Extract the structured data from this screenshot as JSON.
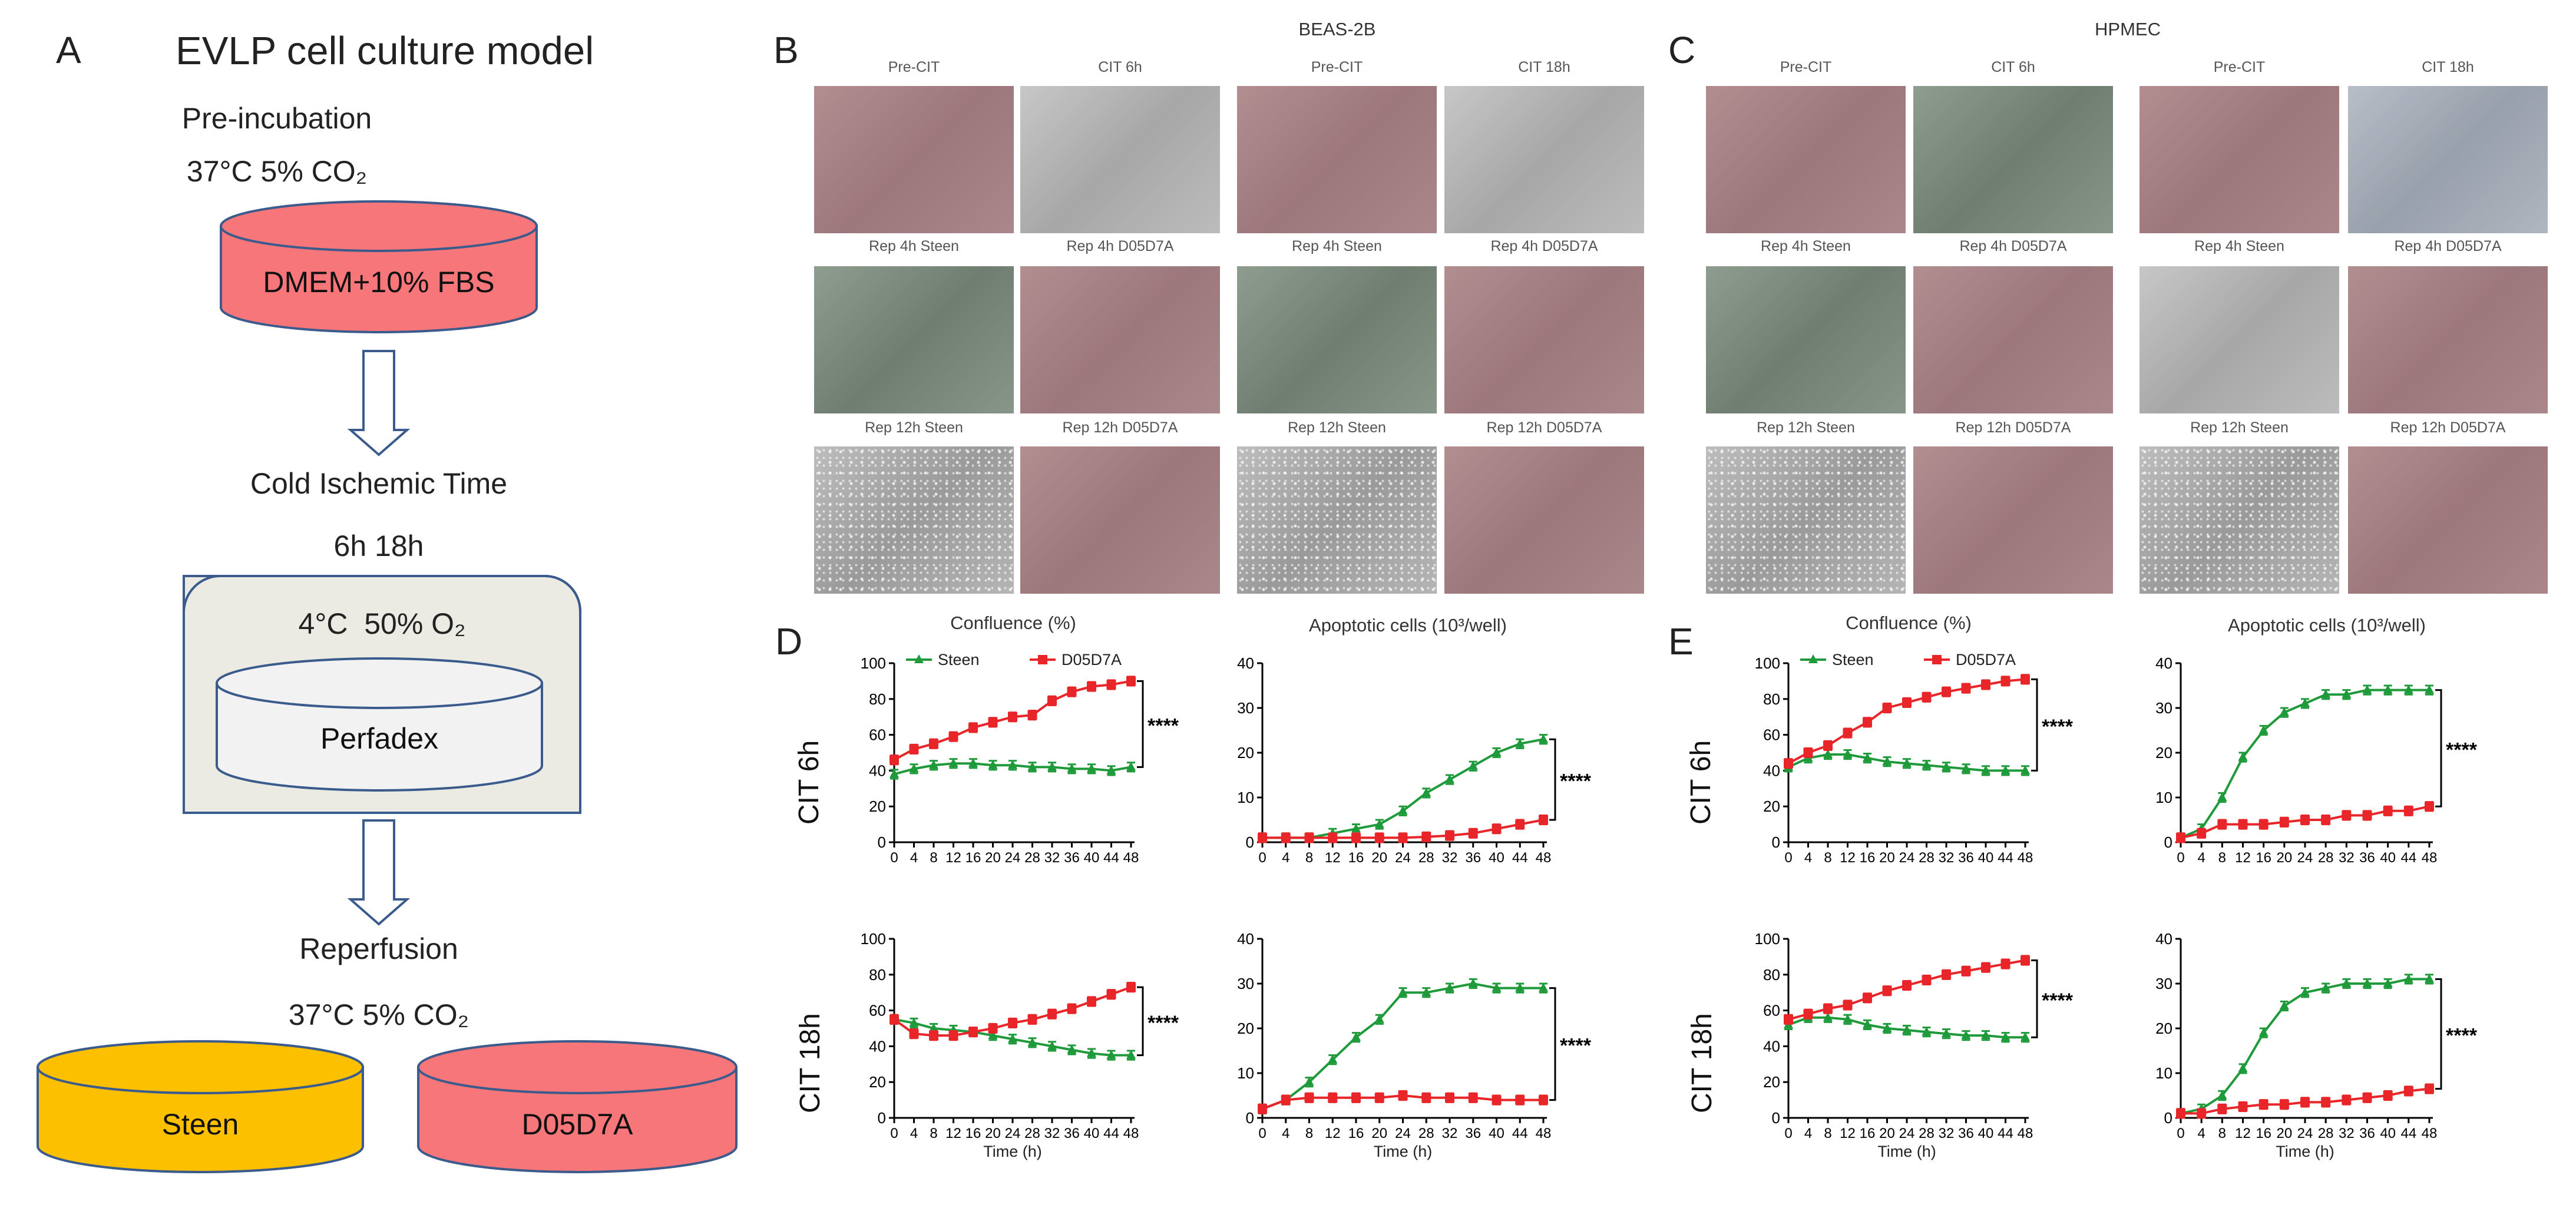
{
  "panel_labels": {
    "a": "A",
    "b": "B",
    "c": "C",
    "d": "D",
    "e": "E"
  },
  "panel_a": {
    "title": "EVLP cell culture model",
    "pre_incubation": "Pre-incubation",
    "pre_condition": "37°C 5% CO₂",
    "dish_1": "DMEM+10% FBS",
    "cold_ischemic": "Cold Ischemic Time",
    "cit_times": "6h 18h",
    "cold_condition": "4°C  50% O₂",
    "cold_dish": "Perfadex",
    "reperfusion": "Reperfusion",
    "rep_condition": "37°C 5% CO₂",
    "dish_steen": "Steen",
    "dish_d05": "D05D7A",
    "colors": {
      "pink": "#f7767a",
      "yellow": "#fdc000",
      "gray_box": "#ebebe3",
      "light_dish": "#f2f2f2",
      "outline": "#3a5b8c"
    }
  },
  "panel_b": {
    "title": "BEAS-2B",
    "rows": [
      [
        "Pre-CIT",
        "CIT 6h",
        "Pre-CIT",
        "CIT 18h"
      ],
      [
        "Rep 4h Steen",
        "Rep 4h D05D7A",
        "Rep 4h Steen",
        "Rep 4h D05D7A"
      ],
      [
        "Rep 12h Steen",
        "Rep 12h D05D7A",
        "Rep 12h Steen",
        "Rep 12h D05D7A"
      ]
    ]
  },
  "panel_c": {
    "title": "HPMEC",
    "rows": [
      [
        "Pre-CIT",
        "CIT 6h",
        "Pre-CIT",
        "CIT 18h"
      ],
      [
        "Rep 4h Steen",
        "Rep 4h D05D7A",
        "Rep 4h Steen",
        "Rep 4h D05D7A"
      ],
      [
        "Rep 12h Steen",
        "Rep 12h D05D7A",
        "Rep 12h Steen",
        "Rep 12h D05D7A"
      ]
    ]
  },
  "col_titles": {
    "confluence": "Confluence (%)",
    "apoptotic": "Apoptotic cells (10³/well)"
  },
  "row_labels": {
    "cit6": "CIT 6h",
    "cit18": "CIT 18h"
  },
  "sig": "****",
  "chart_data": [
    {
      "id": "d_conf_6h",
      "panel": "D",
      "type": "line",
      "title": "Confluence (%)",
      "ylabel": "CIT 6h",
      "xlabel": "",
      "ylim": [
        0,
        100
      ],
      "yticks": [
        0,
        20,
        40,
        60,
        80,
        100
      ],
      "x": [
        0,
        4,
        8,
        12,
        16,
        20,
        24,
        28,
        32,
        36,
        40,
        44,
        48
      ],
      "xticks": [
        0,
        4,
        8,
        12,
        16,
        20,
        24,
        28,
        32,
        36,
        40,
        44,
        48
      ],
      "legend": [
        "Steen",
        "D05D7A"
      ],
      "sig": "****",
      "series": [
        {
          "name": "Steen",
          "color": "#1f9a3a",
          "values": [
            38,
            41,
            43,
            44,
            44,
            43,
            43,
            42,
            42,
            41,
            41,
            40,
            42
          ]
        },
        {
          "name": "D05D7A",
          "color": "#e8262a",
          "values": [
            46,
            52,
            55,
            59,
            64,
            67,
            70,
            71,
            79,
            84,
            87,
            88,
            90
          ]
        }
      ]
    },
    {
      "id": "d_apop_6h",
      "panel": "D",
      "type": "line",
      "title": "Apoptotic cells (10³/well)",
      "ylim": [
        0,
        40
      ],
      "yticks": [
        0,
        10,
        20,
        30,
        40
      ],
      "x": [
        0,
        4,
        8,
        12,
        16,
        20,
        24,
        28,
        32,
        36,
        40,
        44,
        48
      ],
      "xticks": [
        0,
        4,
        8,
        12,
        16,
        20,
        24,
        28,
        32,
        36,
        40,
        44,
        48
      ],
      "sig": "****",
      "series": [
        {
          "name": "Steen",
          "color": "#1f9a3a",
          "values": [
            1,
            1,
            1,
            2,
            3,
            4,
            7,
            11,
            14,
            17,
            20,
            22,
            23
          ]
        },
        {
          "name": "D05D7A",
          "color": "#e8262a",
          "values": [
            1,
            1,
            1,
            1,
            1,
            1,
            1,
            1.2,
            1.5,
            2,
            3,
            4,
            5
          ]
        }
      ]
    },
    {
      "id": "d_conf_18h",
      "panel": "D",
      "type": "line",
      "title": "",
      "ylabel": "CIT 18h",
      "xlabel": "Time (h)",
      "ylim": [
        0,
        100
      ],
      "yticks": [
        0,
        20,
        40,
        60,
        80,
        100
      ],
      "x": [
        0,
        4,
        8,
        12,
        16,
        20,
        24,
        28,
        32,
        36,
        40,
        44,
        48
      ],
      "xticks": [
        0,
        4,
        8,
        12,
        16,
        20,
        24,
        28,
        32,
        36,
        40,
        44,
        48
      ],
      "sig": "****",
      "series": [
        {
          "name": "Steen",
          "color": "#1f9a3a",
          "values": [
            55,
            53,
            50,
            49,
            48,
            46,
            44,
            42,
            40,
            38,
            36,
            35,
            35
          ]
        },
        {
          "name": "D05D7A",
          "color": "#e8262a",
          "values": [
            55,
            47,
            46,
            46,
            48,
            50,
            53,
            55,
            58,
            61,
            65,
            69,
            73
          ]
        }
      ]
    },
    {
      "id": "d_apop_18h",
      "panel": "D",
      "type": "line",
      "title": "",
      "xlabel": "Time (h)",
      "ylim": [
        0,
        40
      ],
      "yticks": [
        0,
        10,
        20,
        30,
        40
      ],
      "x": [
        0,
        4,
        8,
        12,
        16,
        20,
        24,
        28,
        32,
        36,
        40,
        44,
        48
      ],
      "xticks": [
        0,
        4,
        8,
        12,
        16,
        20,
        24,
        28,
        32,
        36,
        40,
        44,
        48
      ],
      "sig": "****",
      "series": [
        {
          "name": "Steen",
          "color": "#1f9a3a",
          "values": [
            2,
            4,
            8,
            13,
            18,
            22,
            28,
            28,
            29,
            30,
            29,
            29,
            29
          ]
        },
        {
          "name": "D05D7A",
          "color": "#e8262a",
          "values": [
            2,
            4,
            4.5,
            4.5,
            4.5,
            4.5,
            5,
            4.5,
            4.5,
            4.5,
            4,
            4,
            4
          ]
        }
      ]
    },
    {
      "id": "e_conf_6h",
      "panel": "E",
      "type": "line",
      "title": "Confluence (%)",
      "ylabel": "CIT 6h",
      "xlabel": "",
      "ylim": [
        0,
        100
      ],
      "yticks": [
        0,
        20,
        40,
        60,
        80,
        100
      ],
      "x": [
        0,
        4,
        8,
        12,
        16,
        20,
        24,
        28,
        32,
        36,
        40,
        44,
        48
      ],
      "xticks": [
        0,
        4,
        8,
        12,
        16,
        20,
        24,
        28,
        32,
        36,
        40,
        44,
        48
      ],
      "legend": [
        "Steen",
        "D05D7A"
      ],
      "sig": "****",
      "series": [
        {
          "name": "Steen",
          "color": "#1f9a3a",
          "values": [
            42,
            47,
            49,
            49,
            47,
            45,
            44,
            43,
            42,
            41,
            40,
            40,
            40
          ]
        },
        {
          "name": "D05D7A",
          "color": "#e8262a",
          "values": [
            44,
            50,
            54,
            61,
            67,
            75,
            78,
            81,
            84,
            86,
            88,
            90,
            91
          ]
        }
      ]
    },
    {
      "id": "e_apop_6h",
      "panel": "E",
      "type": "line",
      "title": "Apoptotic cells (10³/well)",
      "ylim": [
        0,
        40
      ],
      "yticks": [
        0,
        10,
        20,
        30,
        40
      ],
      "x": [
        0,
        4,
        8,
        12,
        16,
        20,
        24,
        28,
        32,
        36,
        40,
        44,
        48
      ],
      "xticks": [
        0,
        4,
        8,
        12,
        16,
        20,
        24,
        28,
        32,
        36,
        40,
        44,
        48
      ],
      "sig": "****",
      "series": [
        {
          "name": "Steen",
          "color": "#1f9a3a",
          "values": [
            1,
            3,
            10,
            19,
            25,
            29,
            31,
            33,
            33,
            34,
            34,
            34,
            34
          ]
        },
        {
          "name": "D05D7A",
          "color": "#e8262a",
          "values": [
            1,
            2,
            4,
            4,
            4,
            4.5,
            5,
            5,
            6,
            6,
            7,
            7,
            8
          ]
        }
      ]
    },
    {
      "id": "e_conf_18h",
      "panel": "E",
      "type": "line",
      "title": "",
      "ylabel": "CIT 18h",
      "xlabel": "Time (h)",
      "ylim": [
        0,
        100
      ],
      "yticks": [
        0,
        20,
        40,
        60,
        80,
        100
      ],
      "x": [
        0,
        4,
        8,
        12,
        16,
        20,
        24,
        28,
        32,
        36,
        40,
        44,
        48
      ],
      "xticks": [
        0,
        4,
        8,
        12,
        16,
        20,
        24,
        28,
        32,
        36,
        40,
        44,
        48
      ],
      "sig": "****",
      "series": [
        {
          "name": "Steen",
          "color": "#1f9a3a",
          "values": [
            52,
            56,
            56,
            55,
            52,
            50,
            49,
            48,
            47,
            46,
            46,
            45,
            45
          ]
        },
        {
          "name": "D05D7A",
          "color": "#e8262a",
          "values": [
            55,
            58,
            61,
            63,
            67,
            71,
            74,
            77,
            80,
            82,
            84,
            86,
            88
          ]
        }
      ]
    },
    {
      "id": "e_apop_18h",
      "panel": "E",
      "type": "line",
      "title": "",
      "xlabel": "Time (h)",
      "ylim": [
        0,
        40
      ],
      "yticks": [
        0,
        10,
        20,
        30,
        40
      ],
      "x": [
        0,
        4,
        8,
        12,
        16,
        20,
        24,
        28,
        32,
        36,
        40,
        44,
        48
      ],
      "xticks": [
        0,
        4,
        8,
        12,
        16,
        20,
        24,
        28,
        32,
        36,
        40,
        44,
        48
      ],
      "sig": "****",
      "series": [
        {
          "name": "Steen",
          "color": "#1f9a3a",
          "values": [
            1,
            2,
            5,
            11,
            19,
            25,
            28,
            29,
            30,
            30,
            30,
            31,
            31
          ]
        },
        {
          "name": "D05D7A",
          "color": "#e8262a",
          "values": [
            1,
            1,
            2,
            2.5,
            3,
            3,
            3.5,
            3.5,
            4,
            4.5,
            5,
            6,
            6.5
          ]
        }
      ]
    }
  ]
}
